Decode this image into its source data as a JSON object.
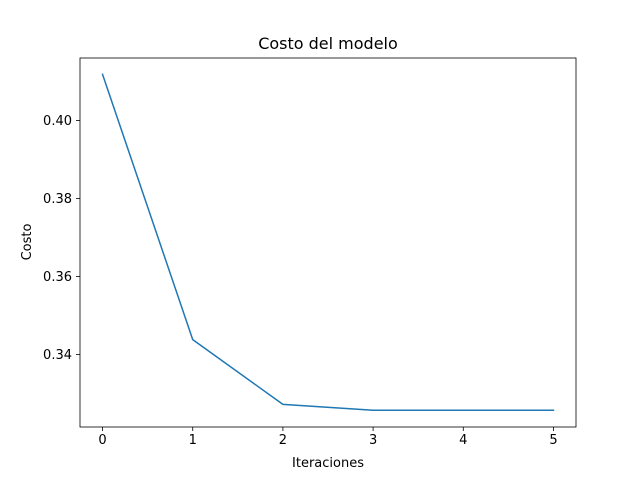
{
  "chart_data": {
    "type": "line",
    "title": "Costo del modelo",
    "xlabel": "Iteraciones",
    "ylabel": "Costo",
    "x": [
      0,
      1,
      2,
      3,
      4,
      5
    ],
    "series": [
      {
        "name": "Costo",
        "color": "#1f77b4",
        "values": [
          0.4118,
          0.3438,
          0.3272,
          0.3257,
          0.3257,
          0.3257
        ]
      }
    ],
    "xlim": [
      -0.25,
      5.25
    ],
    "ylim": [
      0.3214,
      0.416
    ],
    "xticks": [
      0,
      1,
      2,
      3,
      4,
      5
    ],
    "xtick_labels": [
      "0",
      "1",
      "2",
      "3",
      "4",
      "5"
    ],
    "yticks": [
      0.34,
      0.36,
      0.38,
      0.4
    ],
    "ytick_labels": [
      "0.34",
      "0.36",
      "0.38",
      "0.40"
    ],
    "grid": false,
    "legend": false
  }
}
